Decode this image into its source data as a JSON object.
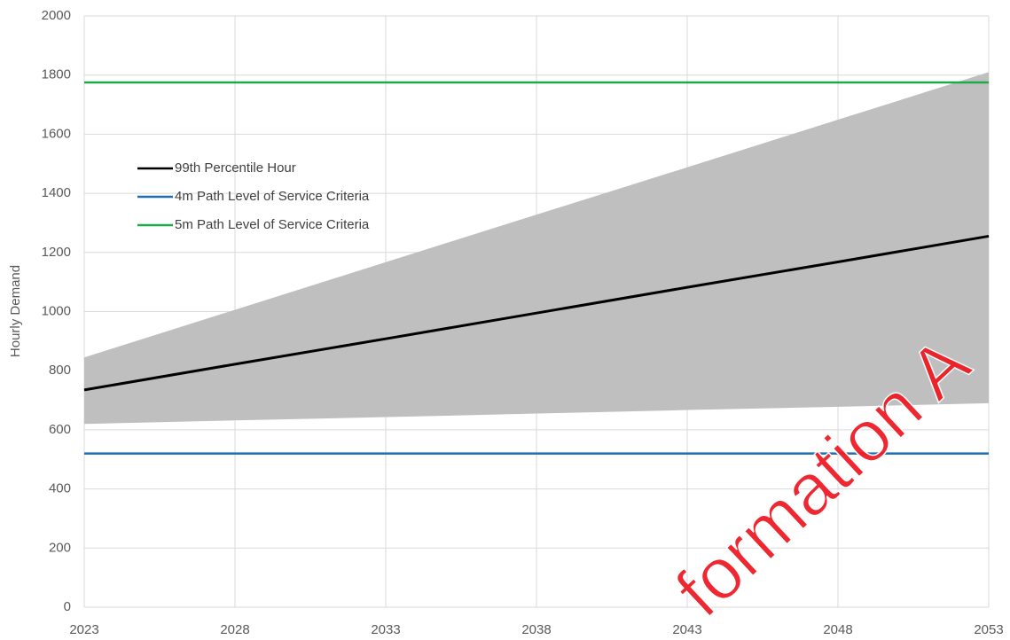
{
  "chart_data": {
    "type": "line",
    "y_label": "Hourly Demand",
    "x": [
      2023,
      2028,
      2033,
      2038,
      2043,
      2048,
      2053
    ],
    "xlim": [
      2023,
      2053
    ],
    "xticks": [
      2023,
      2028,
      2033,
      2038,
      2043,
      2048,
      2053
    ],
    "ylim": [
      0,
      2000
    ],
    "yticks": [
      0,
      200,
      400,
      600,
      800,
      1000,
      1200,
      1400,
      1600,
      1800,
      2000
    ],
    "grid": true,
    "legend": "upper left",
    "band": {
      "color": "#bfbfbf",
      "upper": [
        845,
        1006,
        1167,
        1328,
        1488,
        1649,
        1810
      ],
      "lower": [
        620,
        632,
        643,
        655,
        667,
        678,
        690
      ]
    },
    "series": [
      {
        "name": "99th Percentile Hour",
        "color": "#000000",
        "values": [
          735,
          822,
          908,
          995,
          1082,
          1168,
          1255
        ]
      },
      {
        "name": "4m Path Level of Service Criteria",
        "color": "#1f6fb4",
        "values": [
          520,
          520,
          520,
          520,
          520,
          520,
          520
        ]
      },
      {
        "name": "5m Path Level of Service Criteria",
        "color": "#1faa4a",
        "values": [
          1775,
          1775,
          1775,
          1775,
          1775,
          1775,
          1775
        ]
      }
    ],
    "annotation": "formation A"
  }
}
